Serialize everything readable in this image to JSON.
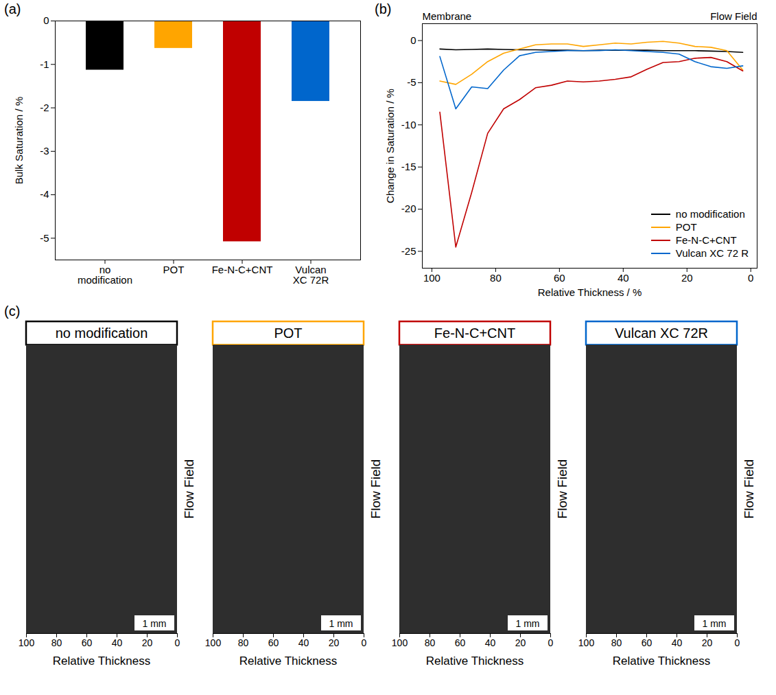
{
  "chart_data": [
    {
      "type": "bar",
      "panel_label": "(a)",
      "categories": [
        "no modification",
        "POT",
        "Fe-N-C+CNT",
        "Vulcan XC 72R"
      ],
      "values": [
        -1.13,
        -0.63,
        -5.08,
        -1.85
      ],
      "colors": [
        "#000000",
        "#ffa500",
        "#c00000",
        "#0066cc"
      ],
      "ylabel": "Bulk Saturation / %",
      "ylim": [
        -5.5,
        0
      ],
      "yticks": [
        -5,
        -4,
        -3,
        -2,
        -1,
        0
      ]
    },
    {
      "type": "line",
      "panel_label": "(b)",
      "xlabel": "Relative Thickness / %",
      "ylabel": "Change in Saturation / %",
      "annotations": [
        "Membrane",
        "Flow Field"
      ],
      "x": [
        97.5,
        92.5,
        87.5,
        82.5,
        77.5,
        72.5,
        67.5,
        62.5,
        57.5,
        52.5,
        47.5,
        42.5,
        37.5,
        32.5,
        27.5,
        22.5,
        17.5,
        12.5,
        7.5,
        2.5
      ],
      "xlim": [
        103,
        -2
      ],
      "xticks": [
        100,
        80,
        60,
        40,
        20,
        0
      ],
      "ylim": [
        -27,
        2
      ],
      "yticks": [
        -25,
        -20,
        -15,
        -10,
        -5,
        0
      ],
      "legend": "bottom-right",
      "series": [
        {
          "name": "no modification",
          "color": "#000000",
          "values": [
            -1.0,
            -1.1,
            -1.05,
            -1.0,
            -1.05,
            -1.1,
            -1.1,
            -1.15,
            -1.15,
            -1.2,
            -1.15,
            -1.15,
            -1.15,
            -1.15,
            -1.2,
            -1.2,
            -1.2,
            -1.25,
            -1.3,
            -1.4
          ]
        },
        {
          "name": "POT",
          "color": "#ffa500",
          "values": [
            -4.8,
            -5.2,
            -4.0,
            -2.5,
            -1.5,
            -1.0,
            -0.5,
            -0.4,
            -0.4,
            -0.7,
            -0.5,
            -0.3,
            -0.4,
            -0.2,
            -0.1,
            -0.3,
            -0.7,
            -0.8,
            -1.2,
            -3.5
          ]
        },
        {
          "name": "Fe-N-C+CNT",
          "color": "#c00000",
          "values": [
            -8.5,
            -24.5,
            -18.0,
            -11.0,
            -8.1,
            -7.0,
            -5.6,
            -5.3,
            -4.8,
            -4.9,
            -4.8,
            -4.6,
            -4.3,
            -3.4,
            -2.6,
            -2.5,
            -2.1,
            -2.0,
            -2.5,
            -3.6
          ]
        },
        {
          "name": "Vulcan XC 72 R",
          "color": "#0066cc",
          "values": [
            -1.9,
            -8.1,
            -5.5,
            -5.7,
            -3.5,
            -1.8,
            -1.4,
            -1.3,
            -1.2,
            -1.2,
            -1.2,
            -1.1,
            -1.2,
            -1.3,
            -1.4,
            -1.6,
            -2.5,
            -3.1,
            -3.3,
            -3.0
          ]
        }
      ]
    },
    {
      "type": "image",
      "panel_label": "(c)",
      "panels": [
        {
          "title": "no modification",
          "color": "#000000"
        },
        {
          "title": "POT",
          "color": "#ffa500"
        },
        {
          "title": "Fe-N-C+CNT",
          "color": "#c00000"
        },
        {
          "title": "Vulcan XC 72R",
          "color": "#0066cc"
        }
      ],
      "xlabel": "Relative Thickness",
      "xlim": [
        100,
        0
      ],
      "xticks": [
        100,
        80,
        60,
        40,
        20,
        0
      ],
      "side_label": "Flow Field",
      "scale_bar": "1 mm"
    }
  ]
}
